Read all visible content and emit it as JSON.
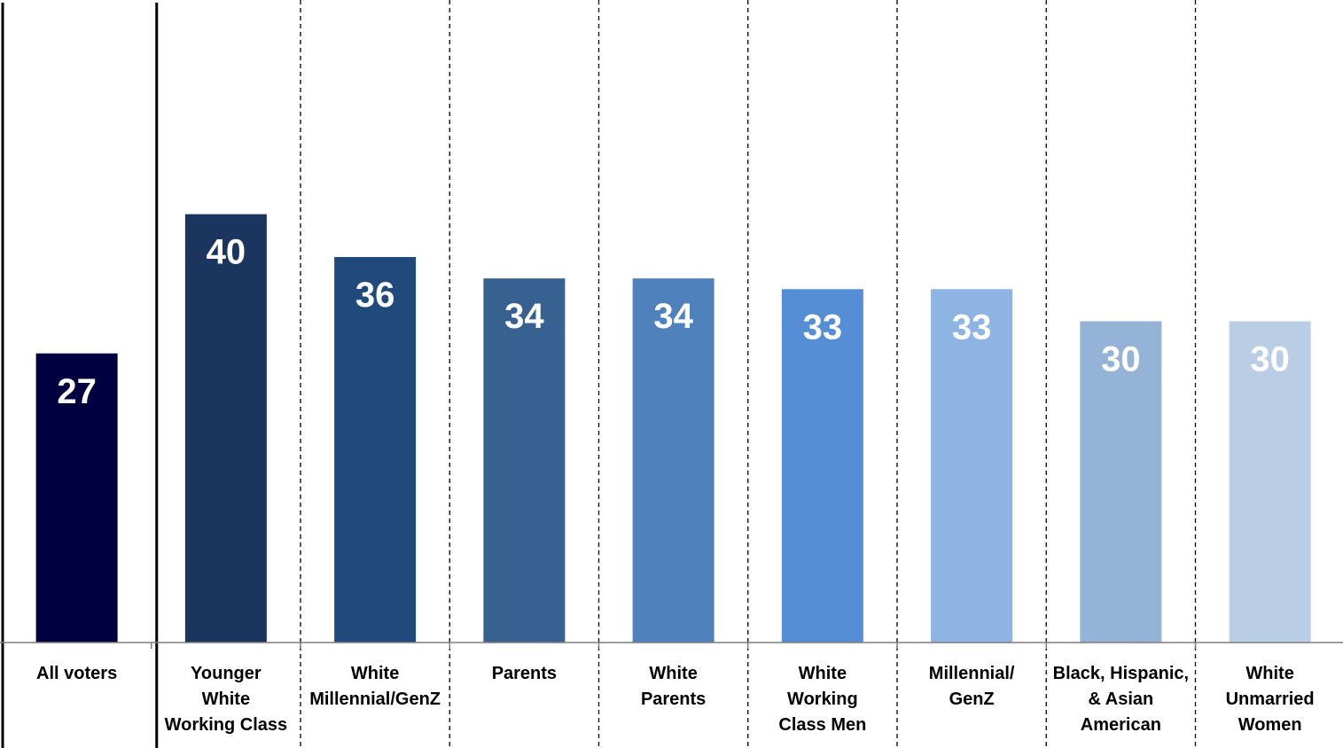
{
  "chart_data": {
    "type": "bar",
    "title": "",
    "xlabel": "",
    "ylabel": "",
    "ylim": [
      0,
      60
    ],
    "grid": false,
    "legend": "none",
    "categories": [
      [
        "All voters"
      ],
      [
        "Younger",
        "White",
        "Working Class"
      ],
      [
        "White",
        "Millennial/GenZ"
      ],
      [
        "Parents"
      ],
      [
        "White",
        "Parents"
      ],
      [
        "White",
        "Working",
        "Class Men"
      ],
      [
        "Millennial/",
        "GenZ"
      ],
      [
        "Black, Hispanic,",
        "& Asian",
        "American"
      ],
      [
        "White",
        "Unmarried",
        "Women"
      ]
    ],
    "values": [
      27,
      40,
      36,
      34,
      34,
      33,
      33,
      30,
      30
    ],
    "value_labels": [
      "27",
      "40",
      "36",
      "34",
      "34",
      "33",
      "33",
      "30",
      "30"
    ],
    "colors": [
      "#000040",
      "#1b365e",
      "#214a7c",
      "#376191",
      "#4f81bd",
      "#558ed5",
      "#8eb4e3",
      "#95b3d7",
      "#b9cde5"
    ]
  }
}
